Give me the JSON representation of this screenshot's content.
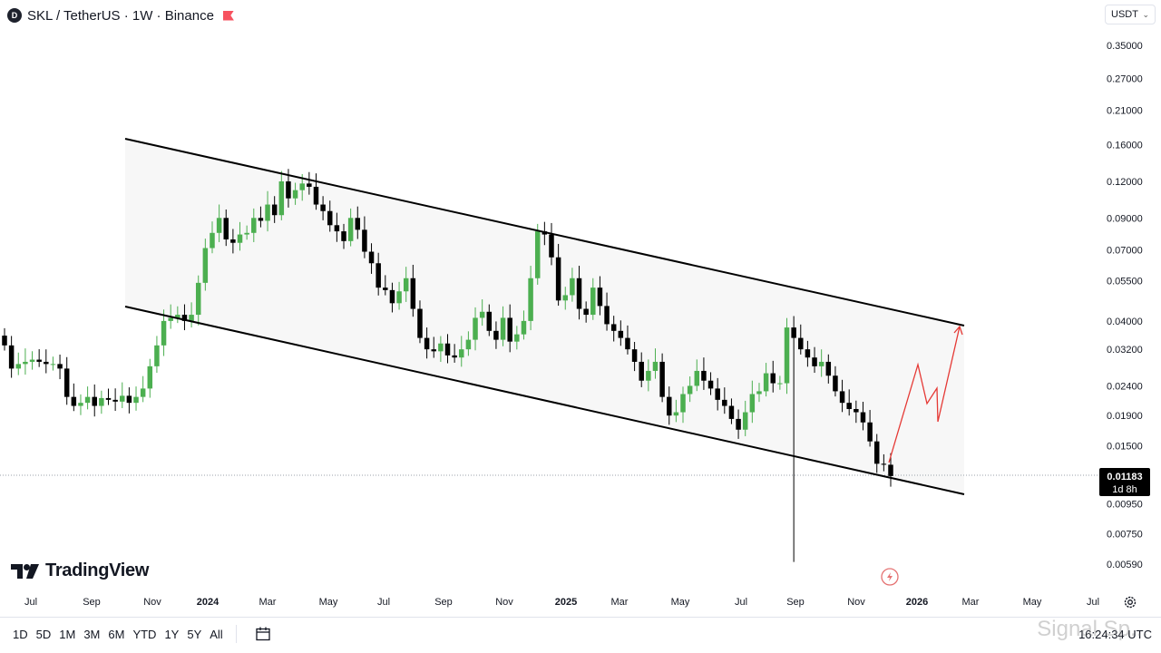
{
  "header": {
    "symbol_badge": "D",
    "title": "SKL / TetherUS · 1W · Binance"
  },
  "currency_select": {
    "value": "USDT"
  },
  "price_badge": {
    "price": "0.01183",
    "countdown": "1d 8h"
  },
  "logo": {
    "text": "TradingView"
  },
  "bottom_bar": {
    "ranges": [
      "1D",
      "5D",
      "1M",
      "3M",
      "6M",
      "YTD",
      "1Y",
      "5Y",
      "All"
    ],
    "clock": "16:24:34 UTC"
  },
  "watermark": "Signal Sp...",
  "chart_data": {
    "type": "candlestick",
    "title": "SKL / TetherUS · 1W · Binance",
    "y_scale": "log",
    "y_ticks": [
      "0.35000",
      "0.27000",
      "0.21000",
      "0.16000",
      "0.12000",
      "0.09000",
      "0.07000",
      "0.05500",
      "0.04000",
      "0.03200",
      "0.02400",
      "0.01900",
      "0.01500",
      "0.00950",
      "0.00750",
      "0.00590"
    ],
    "x_ticks": [
      {
        "label": "Jul",
        "bold": false
      },
      {
        "label": "Sep",
        "bold": false
      },
      {
        "label": "Nov",
        "bold": false
      },
      {
        "label": "2024",
        "bold": true
      },
      {
        "label": "Mar",
        "bold": false
      },
      {
        "label": "May",
        "bold": false
      },
      {
        "label": "Jul",
        "bold": false
      },
      {
        "label": "Sep",
        "bold": false
      },
      {
        "label": "Nov",
        "bold": false
      },
      {
        "label": "2025",
        "bold": true
      },
      {
        "label": "Mar",
        "bold": false
      },
      {
        "label": "May",
        "bold": false
      },
      {
        "label": "Jul",
        "bold": false
      },
      {
        "label": "Sep",
        "bold": false
      },
      {
        "label": "Nov",
        "bold": false
      },
      {
        "label": "2026",
        "bold": true
      },
      {
        "label": "Mar",
        "bold": false
      },
      {
        "label": "May",
        "bold": false
      },
      {
        "label": "Jul",
        "bold": false
      }
    ],
    "last_price": 0.01183,
    "colors": {
      "up": "#4caf50",
      "down": "#000000",
      "channel": "#000000",
      "projection": "#e53935",
      "channel_fill": "#f7f7f7"
    },
    "close_series": [
      0.033,
      0.0275,
      0.0285,
      0.029,
      0.0295,
      0.029,
      0.0285,
      0.0285,
      0.0275,
      0.022,
      0.0205,
      0.021,
      0.022,
      0.0205,
      0.0218,
      0.0215,
      0.0212,
      0.0222,
      0.021,
      0.022,
      0.0235,
      0.028,
      0.033,
      0.04,
      0.041,
      0.042,
      0.04,
      0.042,
      0.054,
      0.071,
      0.08,
      0.09,
      0.076,
      0.074,
      0.079,
      0.08,
      0.09,
      0.088,
      0.1,
      0.092,
      0.12,
      0.105,
      0.112,
      0.118,
      0.115,
      0.1,
      0.095,
      0.085,
      0.081,
      0.075,
      0.09,
      0.082,
      0.069,
      0.063,
      0.052,
      0.051,
      0.046,
      0.0505,
      0.056,
      0.044,
      0.035,
      0.032,
      0.0315,
      0.0335,
      0.0305,
      0.03,
      0.032,
      0.0345,
      0.041,
      0.043,
      0.037,
      0.0345,
      0.041,
      0.034,
      0.036,
      0.04,
      0.056,
      0.081,
      0.079,
      0.066,
      0.047,
      0.049,
      0.056,
      0.044,
      0.042,
      0.052,
      0.045,
      0.039,
      0.037,
      0.035,
      0.032,
      0.029,
      0.025,
      0.027,
      0.029,
      0.022,
      0.019,
      0.0195,
      0.0225,
      0.024,
      0.027,
      0.025,
      0.0235,
      0.0215,
      0.0205,
      0.0185,
      0.017,
      0.0195,
      0.0225,
      0.023,
      0.0265,
      0.0245,
      0.0245,
      0.038,
      0.035,
      0.032,
      0.03,
      0.028,
      0.029,
      0.026,
      0.023,
      0.021,
      0.02,
      0.0195,
      0.018,
      0.0155,
      0.013,
      0.0129,
      0.0118
    ],
    "channel_upper": [
      [
        138,
        153
      ],
      [
        1063,
        359
      ]
    ],
    "channel_lower": [
      [
        138,
        338
      ],
      [
        1063,
        545
      ]
    ],
    "projection": [
      [
        980,
        510
      ],
      [
        1012,
        402
      ],
      [
        1022,
        445
      ],
      [
        1033,
        428
      ],
      [
        1034,
        465
      ],
      [
        1058,
        360
      ]
    ]
  }
}
